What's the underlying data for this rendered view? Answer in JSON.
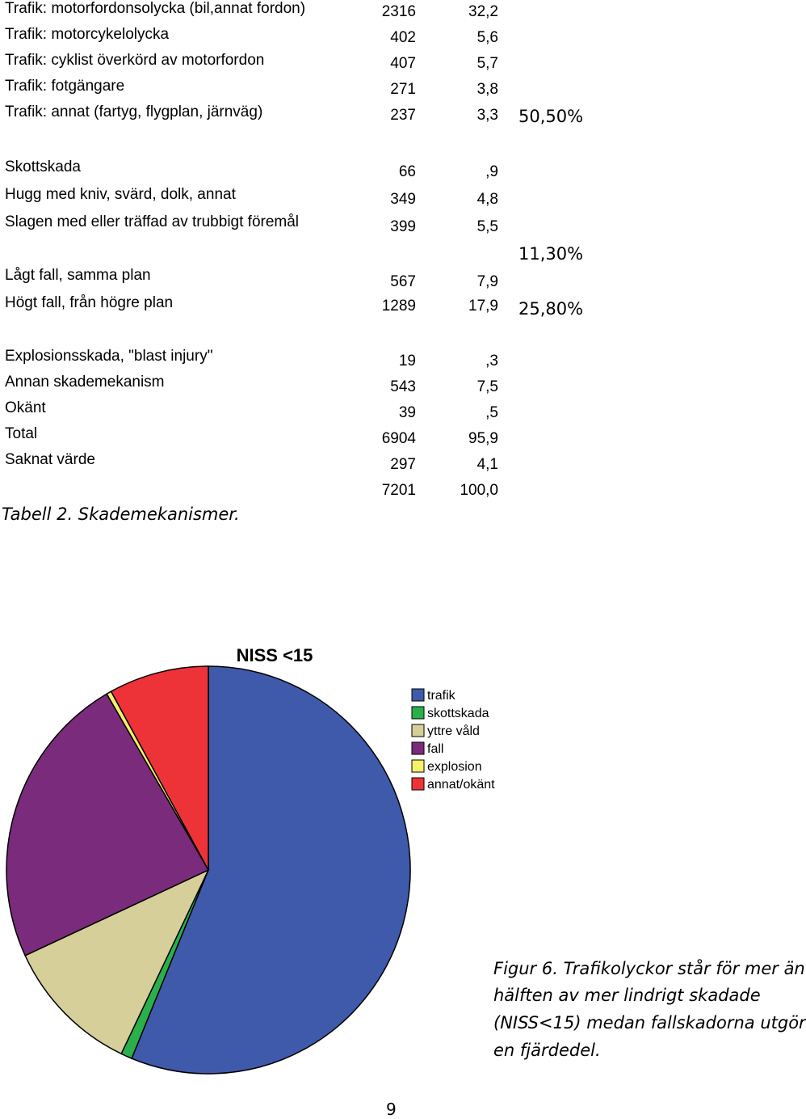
{
  "table": {
    "rows": [
      {
        "label": "Trafik: motorfordonsolycka (bil,annat fordon)",
        "count": "2316",
        "percent": "32,2"
      },
      {
        "label": "Trafik: motorcykelolycka",
        "count": "402",
        "percent": "5,6"
      },
      {
        "label": "Trafik: cyklist överkörd av motorfordon",
        "count": "407",
        "percent": "5,7"
      },
      {
        "label": "Trafik: fotgängare",
        "count": "271",
        "percent": "3,8"
      },
      {
        "label": "Trafik: annat (fartyg, flygplan, järnväg)",
        "count": "237",
        "percent": "3,3"
      },
      {
        "label": "Skottskada",
        "count": "66",
        "percent": ",9"
      },
      {
        "label": "Hugg med kniv, svärd, dolk, annat",
        "count": "349",
        "percent": "4,8"
      },
      {
        "label": "Slagen med eller träffad av trubbigt föremål",
        "count": "399",
        "percent": "5,5"
      },
      {
        "label": "Lågt fall, samma plan",
        "count": "567",
        "percent": "7,9"
      },
      {
        "label": "Högt fall, från högre plan",
        "count": "1289",
        "percent": "17,9"
      },
      {
        "label": "Explosionsskada, \"blast injury\"",
        "count": "19",
        "percent": ",3"
      },
      {
        "label": "Annan skademekanism",
        "count": "543",
        "percent": "7,5"
      },
      {
        "label": "Okänt",
        "count": "39",
        "percent": ",5"
      },
      {
        "label": "Total",
        "count": "6904",
        "percent": "95,9"
      },
      {
        "label": "Saknat värde",
        "count": "297",
        "percent": "4,1"
      },
      {
        "label": "",
        "count": "7201",
        "percent": "100,0"
      }
    ],
    "group_totals": {
      "traffic": "50,50%",
      "violence": "11,30%",
      "falls": "25,80%"
    },
    "caption": "Tabell 2. Skademekanismer."
  },
  "figure_caption": {
    "lines": [
      "Figur 6. Trafikolyckor står för mer än",
      "hälften av mer lindrigt skadade",
      "(NISS<15) medan fallskadorna utgör",
      "en fjärdedel."
    ]
  },
  "page_number": "9",
  "chart_data": {
    "type": "pie",
    "title": "NISS <15",
    "slices": [
      {
        "label": "trafik",
        "value": 56.2,
        "color": "#3f5aab"
      },
      {
        "label": "skottskada",
        "value": 0.9,
        "color": "#2ab04a"
      },
      {
        "label": "yttre våld",
        "value": 11.0,
        "color": "#d6cf9a"
      },
      {
        "label": "fall",
        "value": 23.5,
        "color": "#7b2b7b"
      },
      {
        "label": "explosion",
        "value": 0.4,
        "color": "#f6f06a"
      },
      {
        "label": "annat/okänt",
        "value": 8.0,
        "color": "#ee3338"
      }
    ],
    "legend_position": "right"
  }
}
